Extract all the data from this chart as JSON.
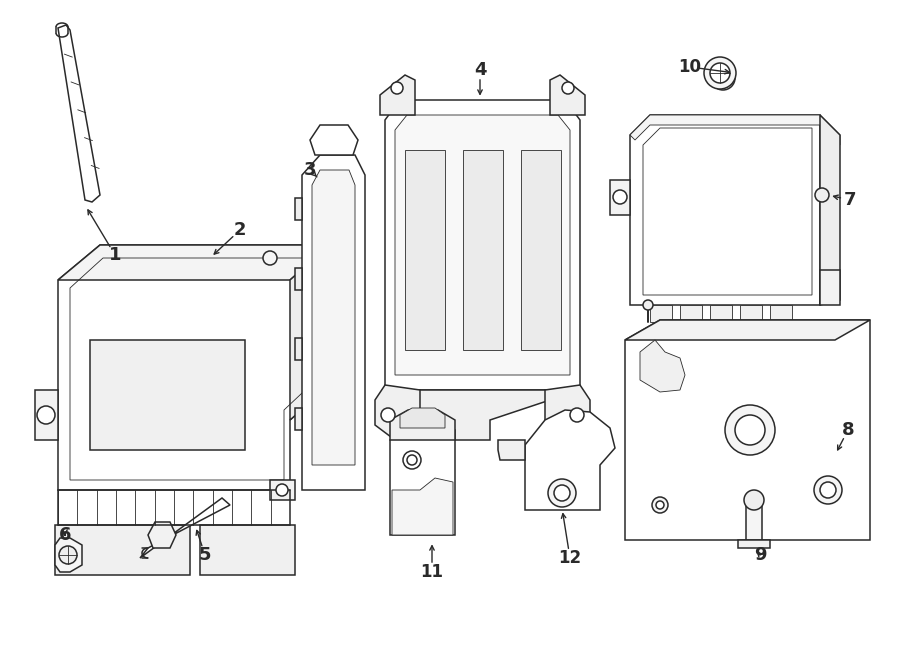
{
  "bg_color": "#ffffff",
  "line_color": "#2a2a2a",
  "lw": 1.1,
  "lw_thin": 0.6,
  "lw_thick": 1.4,
  "figsize": [
    9.0,
    6.62
  ],
  "dpi": 100
}
